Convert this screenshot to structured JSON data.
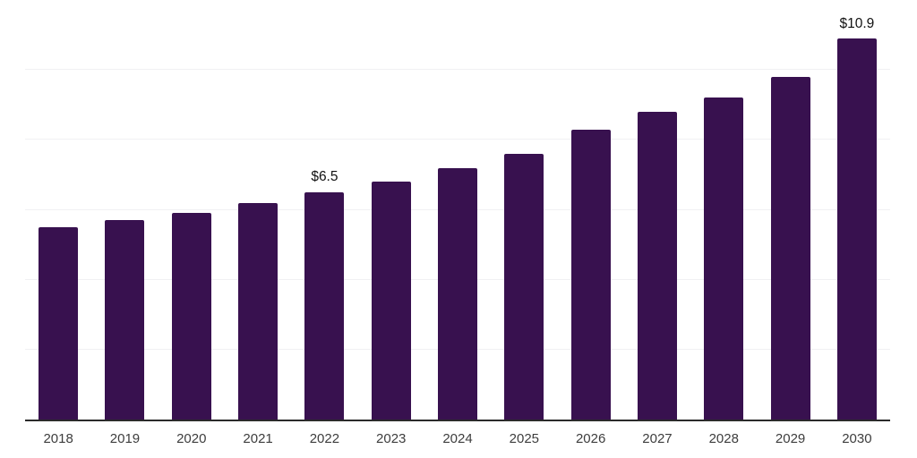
{
  "chart_data": {
    "type": "bar",
    "title": "",
    "categories": [
      "2018",
      "2019",
      "2020",
      "2021",
      "2022",
      "2023",
      "2024",
      "2025",
      "2026",
      "2027",
      "2028",
      "2029",
      "2030"
    ],
    "values": [
      5.5,
      5.7,
      5.9,
      6.2,
      6.5,
      6.8,
      7.2,
      7.6,
      8.3,
      8.8,
      9.2,
      9.8,
      10.9
    ],
    "data_labels": [
      {
        "category": "2022",
        "text": "$6.5"
      },
      {
        "category": "2030",
        "text": "$10.9"
      }
    ],
    "xlabel": "",
    "ylabel": "",
    "ylim": [
      0,
      12
    ],
    "gridline_step": 2,
    "grid": true,
    "legend": false,
    "colors": {
      "bar": "#38114F",
      "gridline": "#F1F1F3",
      "axis_line": "#2B2B2B",
      "tick_label": "#3D3D3D",
      "data_label": "#111111"
    }
  }
}
